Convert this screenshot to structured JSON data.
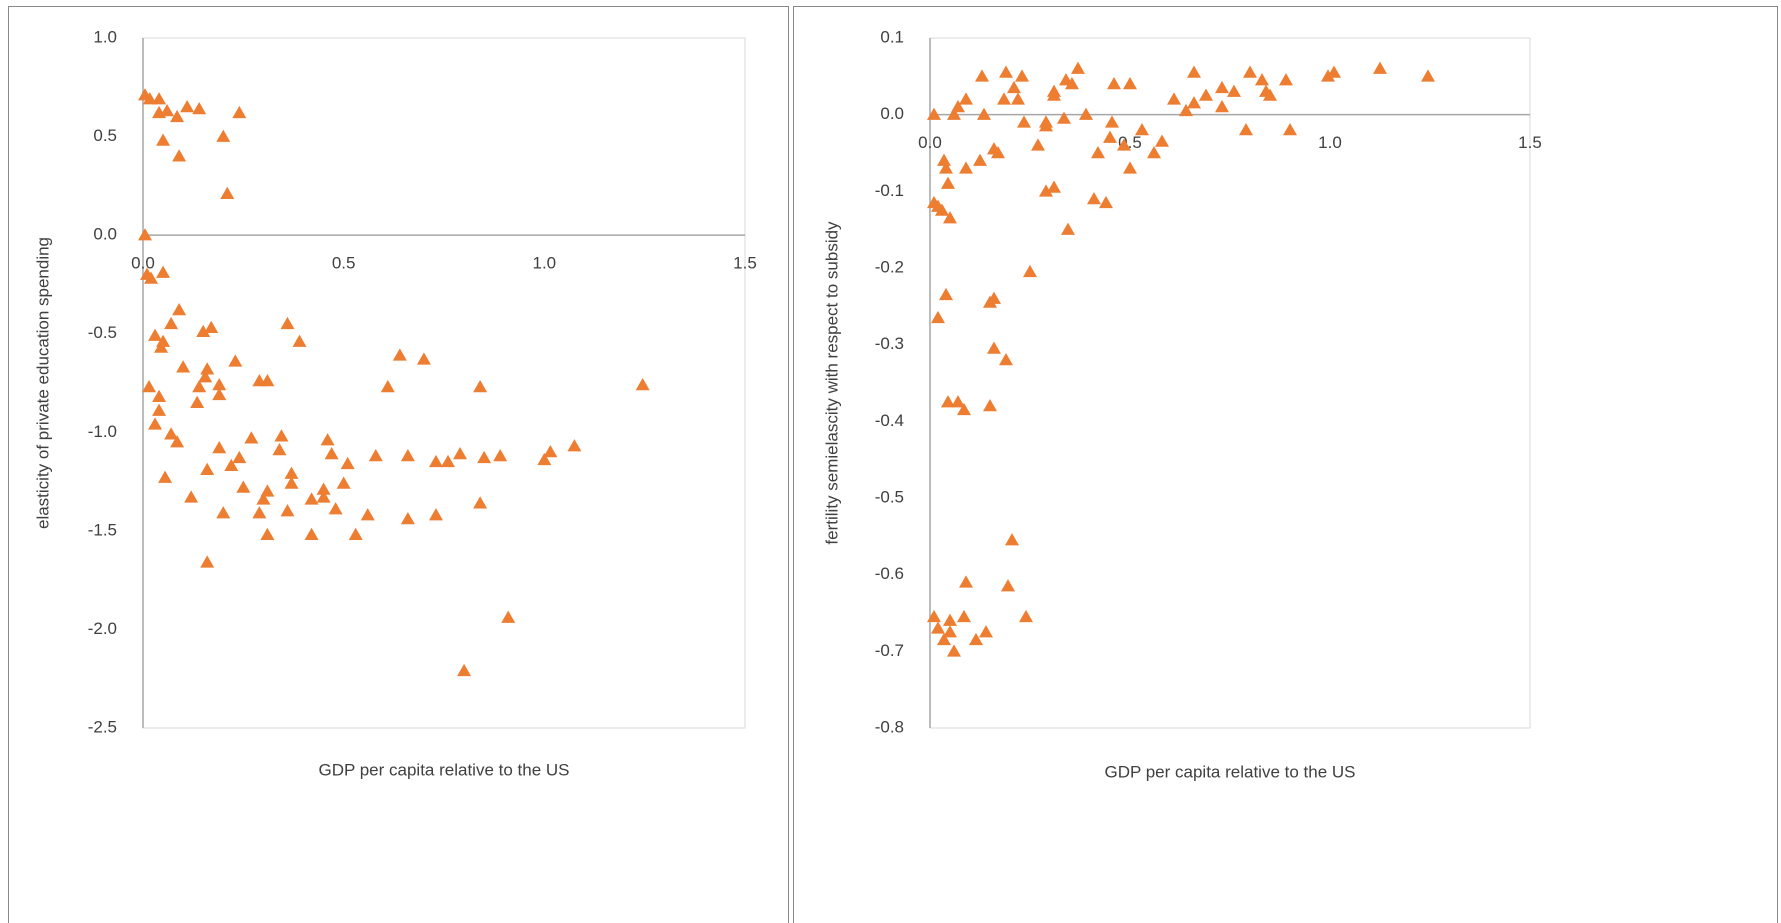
{
  "chart_data": [
    {
      "type": "scatter",
      "color": "#ed7d31",
      "grid": false,
      "xlabel": "GDP per capita relative to the US",
      "ylabel": "elasticity of private education spending",
      "xlim": [
        0,
        1.5
      ],
      "ylim": [
        -2.5,
        1.0
      ],
      "xticks": [
        {
          "value": 0,
          "label": "0.0"
        },
        {
          "value": 0.5,
          "label": "0.5"
        },
        {
          "value": 1,
          "label": "1.0"
        },
        {
          "value": 1.5,
          "label": "1.5"
        }
      ],
      "yticks": [
        {
          "value": 1,
          "label": "1.0"
        },
        {
          "value": 0.5,
          "label": "0.5"
        },
        {
          "value": 0,
          "label": "0.0"
        },
        {
          "value": -0.5,
          "label": "-0.5"
        },
        {
          "value": -1,
          "label": "-1.0"
        },
        {
          "value": -1.5,
          "label": "-1.5"
        },
        {
          "value": -2,
          "label": "-2.0"
        },
        {
          "value": -2.5,
          "label": "-2.5"
        }
      ],
      "x": [
        0.005,
        0.017,
        0.04,
        0.04,
        0.06,
        0.085,
        0.11,
        0.14,
        0.2,
        0.24,
        0.05,
        0.09,
        0.21,
        0.005,
        0.01,
        0.02,
        0.05,
        0.03,
        0.045,
        0.05,
        0.07,
        0.09,
        0.1,
        0.15,
        0.17,
        0.155,
        0.16,
        0.14,
        0.135,
        0.19,
        0.19,
        0.23,
        0.015,
        0.04,
        0.04,
        0.03,
        0.07,
        0.085,
        0.055,
        0.12,
        0.16,
        0.19,
        0.22,
        0.24,
        0.25,
        0.2,
        0.16,
        0.27,
        0.29,
        0.31,
        0.34,
        0.345,
        0.36,
        0.39,
        0.37,
        0.37,
        0.36,
        0.3,
        0.29,
        0.31,
        0.31,
        0.42,
        0.42,
        0.45,
        0.45,
        0.46,
        0.47,
        0.48,
        0.51,
        0.5,
        0.53,
        0.56,
        0.58,
        0.61,
        0.64,
        0.66,
        0.66,
        0.7,
        0.73,
        0.73,
        0.76,
        0.79,
        0.8,
        0.84,
        0.84,
        0.85,
        0.89,
        0.91,
        1.0,
        1.015,
        1.075,
        1.245
      ],
      "y": [
        0.71,
        0.69,
        0.69,
        0.62,
        0.63,
        0.6,
        0.65,
        0.64,
        0.5,
        0.62,
        0.48,
        0.4,
        0.21,
        0.0,
        -0.2,
        -0.22,
        -0.19,
        -0.51,
        -0.57,
        -0.54,
        -0.45,
        -0.38,
        -0.67,
        -0.49,
        -0.47,
        -0.72,
        -0.68,
        -0.77,
        -0.85,
        -0.76,
        -0.81,
        -0.64,
        -0.77,
        -0.82,
        -0.89,
        -0.96,
        -1.01,
        -1.05,
        -1.23,
        -1.33,
        -1.19,
        -1.08,
        -1.17,
        -1.13,
        -1.28,
        -1.41,
        -1.66,
        -1.03,
        -0.74,
        -0.74,
        -1.09,
        -1.02,
        -0.45,
        -0.54,
        -1.21,
        -1.26,
        -1.4,
        -1.34,
        -1.41,
        -1.3,
        -1.52,
        -1.34,
        -1.52,
        -1.33,
        -1.29,
        -1.04,
        -1.11,
        -1.39,
        -1.16,
        -1.26,
        -1.52,
        -1.42,
        -1.12,
        -0.77,
        -0.61,
        -1.12,
        -1.44,
        -0.63,
        -1.15,
        -1.42,
        -1.15,
        -1.11,
        -2.21,
        -0.77,
        -1.36,
        -1.13,
        -1.12,
        -1.94,
        -1.14,
        -1.1,
        -1.07,
        -0.76
      ]
    },
    {
      "type": "scatter",
      "color": "#ed7d31",
      "grid": false,
      "xlabel": "GDP per capita relative to the US",
      "ylabel": "fertility semielascity with respect to subsidy",
      "xlim": [
        0,
        1.5
      ],
      "ylim": [
        -0.8,
        0.1
      ],
      "xticks": [
        {
          "value": 0,
          "label": "0.0"
        },
        {
          "value": 0.5,
          "label": "0.5"
        },
        {
          "value": 1,
          "label": "1.0"
        },
        {
          "value": 1.5,
          "label": "1.5"
        }
      ],
      "yticks": [
        0.1,
        {
          "value": 0,
          "label": "0.0"
        },
        -0.1,
        -0.2,
        -0.3,
        -0.4,
        -0.5,
        -0.6,
        -0.7,
        -0.8
      ],
      "x": [
        0.01,
        0.06,
        0.07,
        0.09,
        0.13,
        0.135,
        0.19,
        0.21,
        0.22,
        0.23,
        0.185,
        0.235,
        0.27,
        0.29,
        0.29,
        0.31,
        0.31,
        0.335,
        0.34,
        0.355,
        0.37,
        0.39,
        0.42,
        0.46,
        0.455,
        0.45,
        0.485,
        0.5,
        0.5,
        0.53,
        0.56,
        0.58,
        0.61,
        0.64,
        0.66,
        0.66,
        0.69,
        0.73,
        0.73,
        0.76,
        0.79,
        0.8,
        0.83,
        0.84,
        0.85,
        0.89,
        0.9,
        0.995,
        1.01,
        1.125,
        1.245,
        0.01,
        0.02,
        0.03,
        0.04,
        0.035,
        0.045,
        0.05,
        0.09,
        0.125,
        0.16,
        0.17,
        0.29,
        0.31,
        0.345,
        0.41,
        0.44,
        0.25,
        0.02,
        0.04,
        0.15,
        0.16,
        0.16,
        0.19,
        0.045,
        0.07,
        0.085,
        0.15,
        0.205,
        0.01,
        0.02,
        0.035,
        0.05,
        0.05,
        0.06,
        0.085,
        0.09,
        0.115,
        0.14,
        0.195,
        0.24
      ],
      "y": [
        0.0,
        0.0,
        0.01,
        0.02,
        0.05,
        0.0,
        0.055,
        0.035,
        0.02,
        0.05,
        0.02,
        -0.01,
        -0.04,
        -0.01,
        -0.015,
        0.025,
        0.03,
        -0.005,
        0.045,
        0.04,
        0.06,
        0.0,
        -0.05,
        0.04,
        -0.01,
        -0.03,
        -0.04,
        0.04,
        -0.07,
        -0.02,
        -0.05,
        -0.035,
        0.02,
        0.005,
        0.015,
        0.055,
        0.025,
        0.035,
        0.01,
        0.03,
        -0.02,
        0.055,
        0.045,
        0.03,
        0.025,
        0.045,
        -0.02,
        0.05,
        0.055,
        0.06,
        0.05,
        -0.115,
        -0.12,
        -0.125,
        -0.07,
        -0.06,
        -0.09,
        -0.135,
        -0.07,
        -0.06,
        -0.045,
        -0.05,
        -0.1,
        -0.095,
        -0.15,
        -0.11,
        -0.115,
        -0.205,
        -0.265,
        -0.235,
        -0.245,
        -0.24,
        -0.305,
        -0.32,
        -0.375,
        -0.375,
        -0.385,
        -0.38,
        -0.555,
        -0.655,
        -0.67,
        -0.685,
        -0.675,
        -0.66,
        -0.7,
        -0.655,
        -0.61,
        -0.685,
        -0.675,
        -0.615,
        -0.655
      ]
    }
  ]
}
